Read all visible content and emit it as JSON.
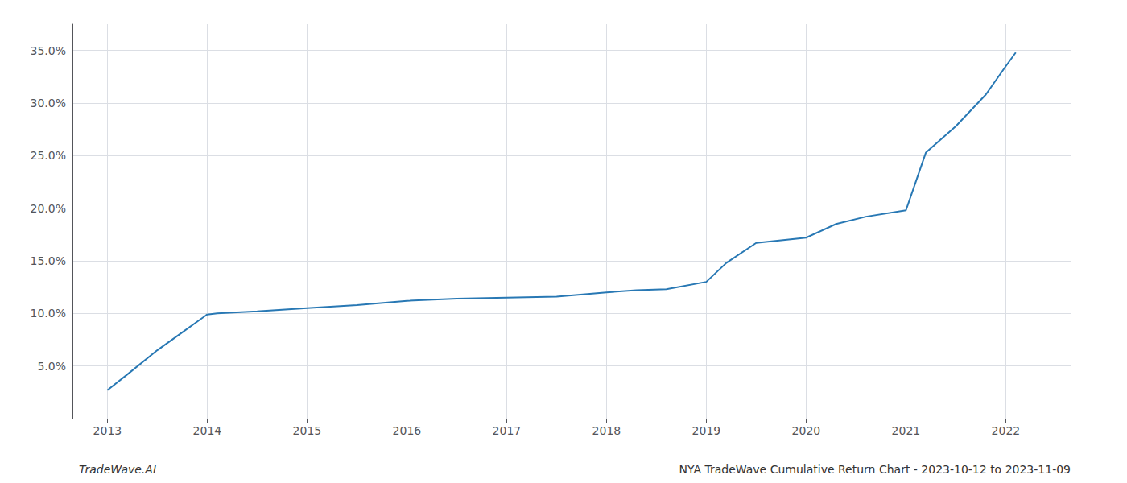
{
  "chart_data": {
    "type": "line",
    "x": [
      2013.0,
      2013.2,
      2013.5,
      2013.75,
      2014.0,
      2014.1,
      2014.5,
      2015.0,
      2015.5,
      2016.0,
      2016.5,
      2017.0,
      2017.5,
      2018.0,
      2018.3,
      2018.6,
      2019.0,
      2019.2,
      2019.5,
      2020.0,
      2020.3,
      2020.6,
      2021.0,
      2021.2,
      2021.5,
      2021.8,
      2022.0,
      2022.1
    ],
    "values": [
      0.027,
      0.042,
      0.065,
      0.082,
      0.099,
      0.1,
      0.102,
      0.105,
      0.108,
      0.112,
      0.114,
      0.115,
      0.116,
      0.12,
      0.122,
      0.123,
      0.13,
      0.148,
      0.167,
      0.172,
      0.185,
      0.192,
      0.198,
      0.253,
      0.278,
      0.308,
      0.335,
      0.348
    ],
    "color": "#2878b4",
    "xlim": [
      2012.65,
      2022.65
    ],
    "xticks": [
      2013,
      2014,
      2015,
      2016,
      2017,
      2018,
      2019,
      2020,
      2021,
      2022
    ],
    "ylim": [
      0.0,
      0.375
    ],
    "yticks": [
      {
        "value": 0.05,
        "label": "5.0%"
      },
      {
        "value": 0.1,
        "label": "10.0%"
      },
      {
        "value": 0.15,
        "label": "15.0%"
      },
      {
        "value": 0.2,
        "label": "20.0%"
      },
      {
        "value": 0.25,
        "label": "25.0%"
      },
      {
        "value": 0.3,
        "label": "30.0%"
      },
      {
        "value": 0.35,
        "label": "35.0%"
      }
    ],
    "grid": true,
    "annotations": [
      "TradeWave.AI",
      "NYA TradeWave Cumulative Return Chart - 2023-10-12 to 2023-11-09"
    ]
  }
}
